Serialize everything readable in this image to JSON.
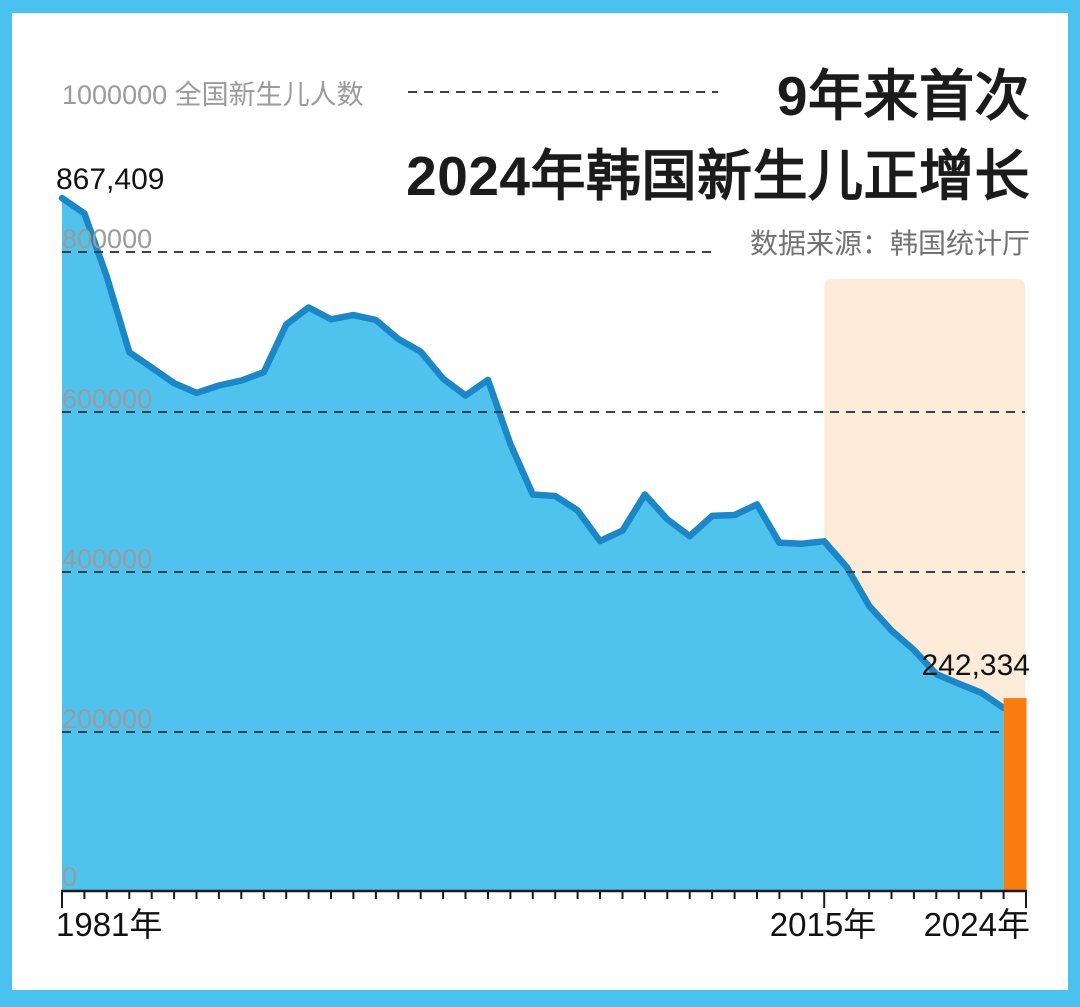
{
  "frame": {
    "border_color": "#4AC1EF",
    "panel_background": "#FFFFFF"
  },
  "header": {
    "title_line1": "9年来首次",
    "title_line2": "2024年韩国新生儿正增长",
    "source": "数据来源：韩国统计厅"
  },
  "y_axis": {
    "unit_label": "1000000 全国新生儿人数",
    "ticks": [
      "800000",
      "600000",
      "400000",
      "200000",
      "0"
    ]
  },
  "x_axis": {
    "labels": {
      "start": "1981年",
      "mid": "2015年",
      "end": "2024年"
    }
  },
  "annotations": {
    "start_value": "867,409",
    "end_value": "242,334"
  },
  "chart_data": {
    "type": "area",
    "title": "9年来首次 2024年韩国新生儿正增长",
    "source": "数据来源：韩国统计厅",
    "ylabel": "全国新生儿人数",
    "ylim": [
      0,
      1000000
    ],
    "xlim": [
      1981,
      2024
    ],
    "gridlines": [
      1000000,
      800000,
      600000,
      400000,
      200000,
      0
    ],
    "grid_style": "dashed",
    "x": [
      1981,
      1982,
      1983,
      1984,
      1985,
      1986,
      1987,
      1988,
      1989,
      1990,
      1991,
      1992,
      1993,
      1994,
      1995,
      1996,
      1997,
      1998,
      1999,
      2000,
      2001,
      2002,
      2003,
      2004,
      2005,
      2006,
      2007,
      2008,
      2009,
      2010,
      2011,
      2012,
      2013,
      2014,
      2015,
      2016,
      2017,
      2018,
      2019,
      2020,
      2021,
      2022,
      2023
    ],
    "values": [
      867409,
      848312,
      769155,
      674793,
      655489,
      636019,
      623831,
      633092,
      639431,
      649738,
      709275,
      730678,
      715826,
      721185,
      715020,
      691226,
      675394,
      641594,
      620668,
      640089,
      559934,
      496911,
      495036,
      476958,
      438707,
      451759,
      496822,
      465892,
      444849,
      470171,
      471265,
      484550,
      436455,
      435435,
      438420,
      406243,
      357771,
      326822,
      302676,
      272337,
      260562,
      249186,
      230028
    ],
    "highlight_bar": {
      "year": 2024,
      "value": 242334,
      "color": "#F87D0E"
    },
    "highlight_region": {
      "from_year": 2015,
      "to_year": 2024,
      "color": "#FCEBD8"
    },
    "colors": {
      "area_fill": "#4FC2EE",
      "line": "#1B87C6",
      "grid": "#3a414b",
      "axis": "#1a1a1a"
    }
  }
}
